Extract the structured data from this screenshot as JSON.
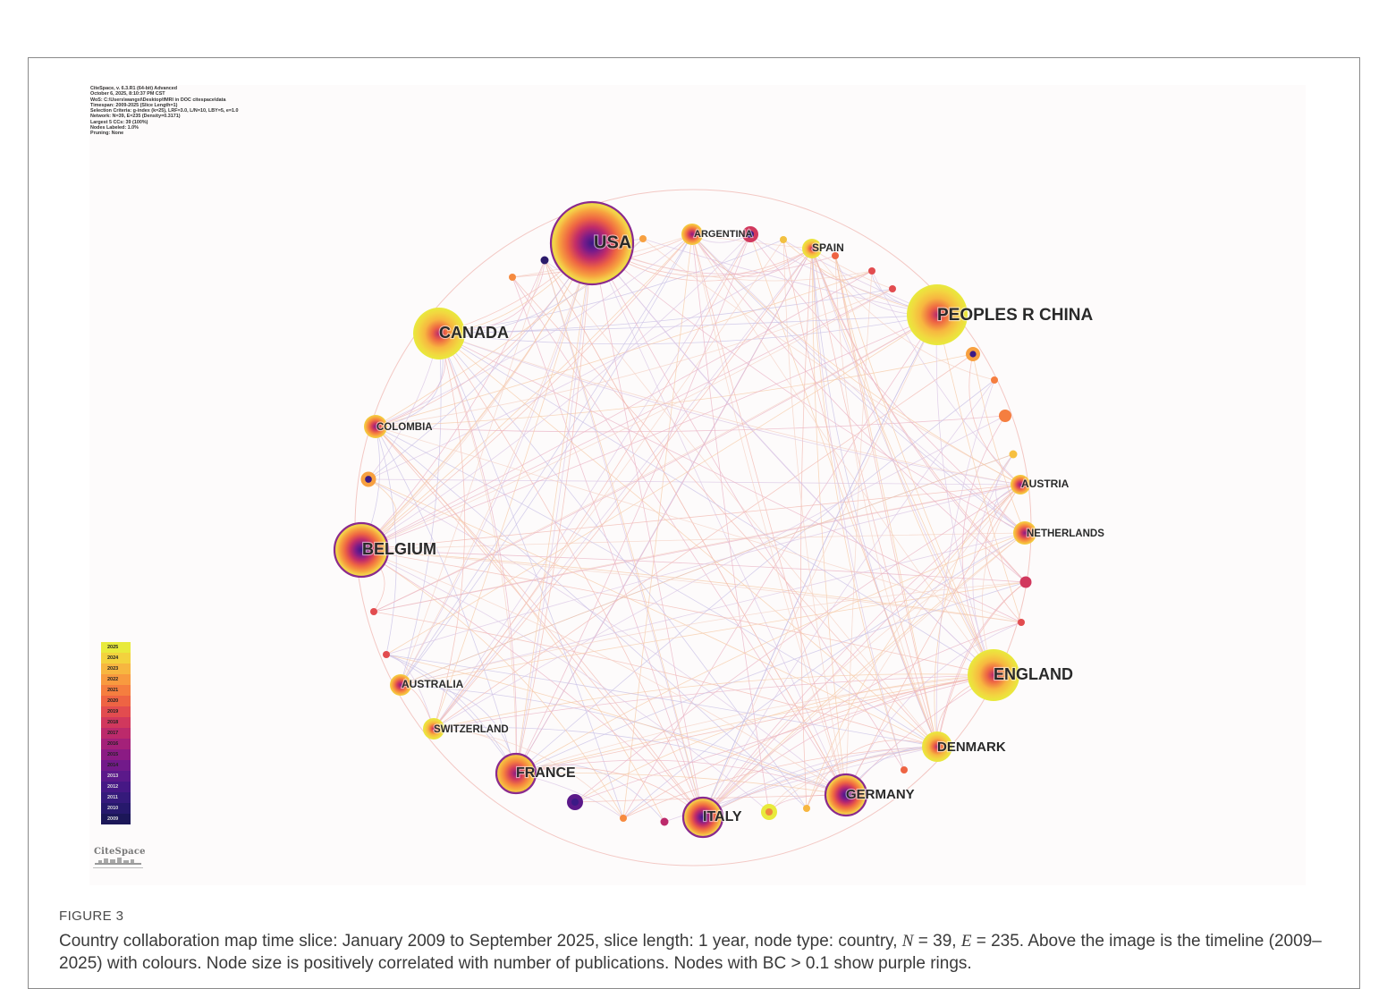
{
  "meta_lines": [
    "CiteSpace, v. 6.3.R1 (64-bit) Advanced",
    "October 6, 2025, 8:10:37 PM CST",
    "WoS: C:\\Users\\wangxi\\Desktop\\fMRI in DOC citespace\\data",
    "Timespan: 2009-2025 (Slice Length=1)",
    "Selection Criteria: g-index (k=25), LRF=3.0, L/N=10, LBY=5, e=1.0",
    "Network: N=39, E=235 (Density=0.3171)",
    "Largest 5 CCs: 39 (100%)",
    "Nodes Labeled: 1.0%",
    "Pruning: None"
  ],
  "legend_years": [
    "2025",
    "2024",
    "2023",
    "2022",
    "2021",
    "2020",
    "2019",
    "2018",
    "2017",
    "2016",
    "2015",
    "2014",
    "2013",
    "2012",
    "2011",
    "2010",
    "2009"
  ],
  "legend_colors": [
    "#e8ea3c",
    "#f3d23e",
    "#f7b640",
    "#f89a3f",
    "#f57e3f",
    "#ee6443",
    "#e24c4f",
    "#d1385d",
    "#bc2a6b",
    "#a42179",
    "#8b1b84",
    "#721a8a",
    "#5b198a",
    "#461885",
    "#351a7b",
    "#27196c",
    "#1c1758"
  ],
  "logo": "CiteSpace",
  "nodes": [
    {
      "label": "USA",
      "size": 46,
      "ring": true
    },
    {
      "label": "ARGENTINA",
      "size": 12,
      "ring": false
    },
    {
      "label": "SPAIN",
      "size": 11,
      "ring": false
    },
    {
      "label": "PEOPLES R CHINA",
      "size": 34,
      "ring": false
    },
    {
      "label": "AUSTRIA",
      "size": 11,
      "ring": false
    },
    {
      "label": "NETHERLANDS",
      "size": 13,
      "ring": false
    },
    {
      "label": "ENGLAND",
      "size": 29,
      "ring": false
    },
    {
      "label": "DENMARK",
      "size": 17,
      "ring": false
    },
    {
      "label": "GERMANY",
      "size": 23,
      "ring": true
    },
    {
      "label": "ITALY",
      "size": 22,
      "ring": true
    },
    {
      "label": "FRANCE",
      "size": 22,
      "ring": true
    },
    {
      "label": "SWITZERLAND",
      "size": 12,
      "ring": false
    },
    {
      "label": "AUSTRALIA",
      "size": 12,
      "ring": false
    },
    {
      "label": "BELGIUM",
      "size": 30,
      "ring": true
    },
    {
      "label": "COLOMBIA",
      "size": 13,
      "ring": false
    },
    {
      "label": "CANADA",
      "size": 29,
      "ring": false
    }
  ],
  "caption": {
    "label": "FIGURE 3",
    "text_before_n": "Country collaboration map time slice: January 2009 to September 2025, slice length: 1 year, node type: country, ",
    "n_symbol": "N",
    "n_value": " = 39, ",
    "e_symbol": "E",
    "e_value": " = 235. Above the image is the timeline (2009–2025) with colours. Node size is positively correlated with number of publications. Nodes with BC > 0.1 show purple rings."
  }
}
